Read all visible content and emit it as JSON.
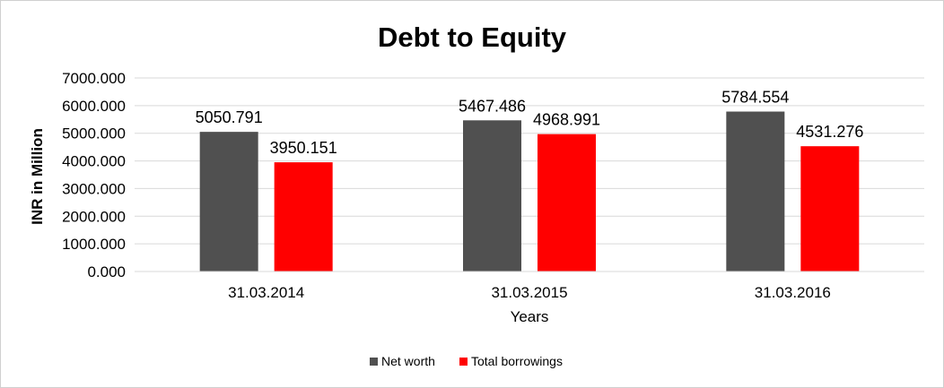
{
  "chart_data": {
    "type": "bar",
    "title": "Debt to Equity",
    "xlabel": "Years",
    "ylabel": "INR in Million",
    "categories": [
      "31.03.2014",
      "31.03.2015",
      "31.03.2016"
    ],
    "series": [
      {
        "name": "Net worth",
        "color": "#505050",
        "values": [
          5050.791,
          5467.486,
          5784.554
        ],
        "labels": [
          "5050.791",
          "5467.486",
          "5784.554"
        ]
      },
      {
        "name": "Total borrowings",
        "color": "#ff0000",
        "values": [
          3950.151,
          4968.991,
          4531.276
        ],
        "labels": [
          "3950.151",
          "4968.991",
          "4531.276"
        ]
      }
    ],
    "ylim": [
      0,
      7000
    ],
    "yticks": [
      "0.000",
      "1000.000",
      "2000.000",
      "3000.000",
      "4000.000",
      "5000.000",
      "6000.000",
      "7000.000"
    ],
    "grid": true,
    "legend_position": "bottom"
  }
}
